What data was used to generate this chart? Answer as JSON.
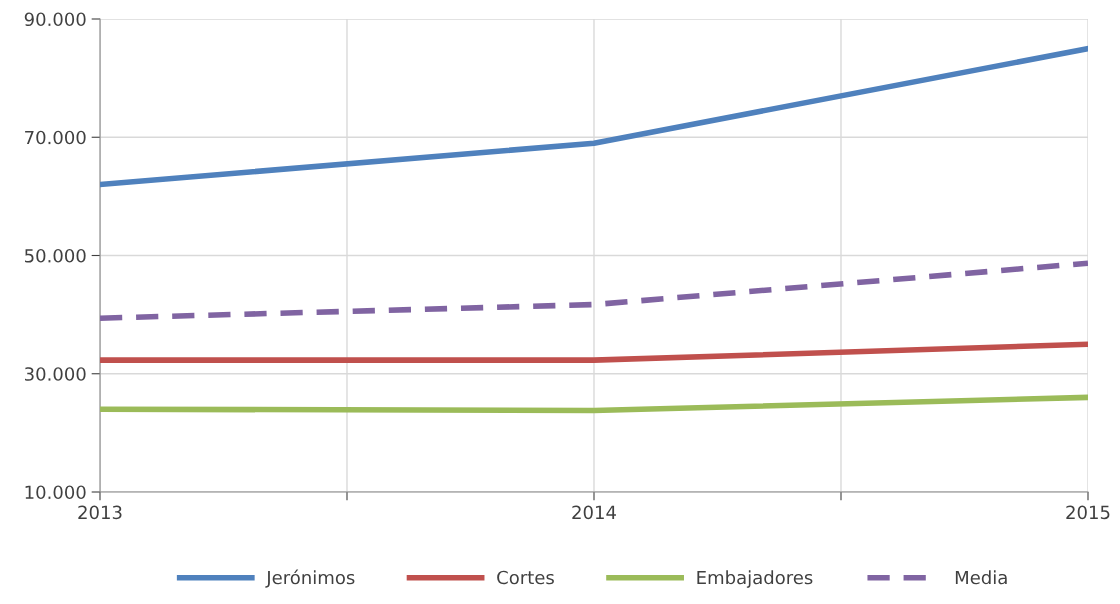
{
  "chart_data": {
    "type": "line",
    "x": [
      2013,
      2014,
      2015
    ],
    "series": [
      {
        "name": "Jerónimos",
        "color": "#4f81bd",
        "values": [
          62000,
          69000,
          85000
        ]
      },
      {
        "name": "Cortes",
        "color": "#c0504d",
        "values": [
          32300,
          32300,
          35000
        ]
      },
      {
        "name": "Embajadores",
        "color": "#9bbb59",
        "values": [
          24000,
          23800,
          26000
        ]
      },
      {
        "name": "Media",
        "color": "#8064a2",
        "values": [
          39400,
          41700,
          48700
        ],
        "line_style": "dashed"
      }
    ],
    "xlim": [
      2013,
      2015
    ],
    "xticks": [
      2013,
      {
        "value": 2013.5,
        "label": null
      },
      2014,
      {
        "value": 2014.5,
        "label": null
      },
      2015
    ],
    "ylim": [
      10000,
      90000
    ],
    "yticks": [
      {
        "value": 10000,
        "label": "10.000"
      },
      {
        "value": 30000,
        "label": "30.000"
      },
      {
        "value": 50000,
        "label": "50.000"
      },
      {
        "value": 70000,
        "label": "70.000"
      },
      {
        "value": 90000,
        "label": "90.000"
      }
    ],
    "grid": true,
    "legend": "bottom",
    "marker": "none",
    "line_style": "solid"
  }
}
